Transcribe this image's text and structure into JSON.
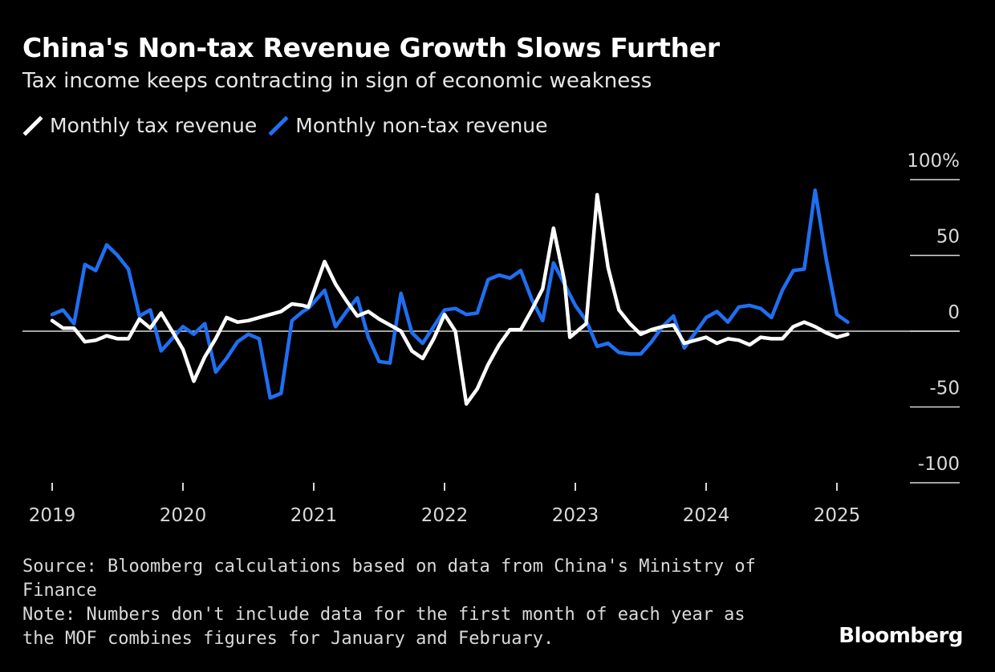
{
  "header": {
    "title": "China's Non-tax Revenue Growth Slows Further",
    "subtitle": "Tax income keeps contracting in sign of economic weakness"
  },
  "legend": [
    {
      "label": "Monthly tax revenue",
      "color": "#ffffff"
    },
    {
      "label": "Monthly non-tax revenue",
      "color": "#1f6ff2"
    }
  ],
  "footer": {
    "source": "Source: Bloomberg calculations based on data from China's Ministry of Finance",
    "note": "Note: Numbers don't include data for the first month of each year as the MOF combines figures for January and February.",
    "brand": "Bloomberg"
  },
  "chart_data": {
    "type": "line",
    "title": "China's Non-tax Revenue Growth Slows Further",
    "subtitle": "Tax income keeps contracting in sign of economic weakness",
    "xlabel": "",
    "ylabel": "",
    "ylim": [
      -100,
      100
    ],
    "xlim": [
      2019.0,
      2025.5
    ],
    "y_ticks": [
      100,
      50,
      0,
      -50,
      -100
    ],
    "y_tick_labels": [
      "100%",
      "50",
      "0",
      "-50",
      "-100"
    ],
    "x_ticks": [
      2019,
      2020,
      2021,
      2022,
      2023,
      2024,
      2025
    ],
    "x_tick_labels": [
      "2019",
      "2020",
      "2021",
      "2022",
      "2023",
      "2024",
      "2025"
    ],
    "zero_line": true,
    "grid": false,
    "legend_position": "top-left",
    "series": [
      {
        "name": "Monthly tax revenue",
        "color": "#ffffff",
        "points": [
          [
            2019.0,
            7
          ],
          [
            2019.083,
            2
          ],
          [
            2019.167,
            2
          ],
          [
            2019.25,
            -7
          ],
          [
            2019.333,
            -6
          ],
          [
            2019.417,
            -3
          ],
          [
            2019.5,
            -5
          ],
          [
            2019.583,
            -5
          ],
          [
            2019.667,
            8
          ],
          [
            2019.75,
            2
          ],
          [
            2019.833,
            12
          ],
          [
            2019.917,
            0
          ],
          [
            2020.0,
            -12
          ],
          [
            2020.083,
            -33
          ],
          [
            2020.167,
            -17
          ],
          [
            2020.25,
            -5
          ],
          [
            2020.333,
            9
          ],
          [
            2020.417,
            6
          ],
          [
            2020.5,
            7
          ],
          [
            2020.583,
            9
          ],
          [
            2020.667,
            11
          ],
          [
            2020.75,
            13
          ],
          [
            2020.833,
            18
          ],
          [
            2020.917,
            17
          ],
          [
            2020.958,
            16
          ],
          [
            2021.083,
            46
          ],
          [
            2021.167,
            31
          ],
          [
            2021.25,
            20
          ],
          [
            2021.333,
            10
          ],
          [
            2021.417,
            13
          ],
          [
            2021.5,
            8
          ],
          [
            2021.583,
            4
          ],
          [
            2021.667,
            0
          ],
          [
            2021.75,
            -13
          ],
          [
            2021.833,
            -18
          ],
          [
            2021.917,
            -5
          ],
          [
            2022.0,
            11
          ],
          [
            2022.083,
            0
          ],
          [
            2022.167,
            -48
          ],
          [
            2022.25,
            -38
          ],
          [
            2022.333,
            -22
          ],
          [
            2022.417,
            -9
          ],
          [
            2022.5,
            1
          ],
          [
            2022.583,
            1
          ],
          [
            2022.667,
            14
          ],
          [
            2022.75,
            28
          ],
          [
            2022.833,
            68
          ],
          [
            2022.917,
            33
          ],
          [
            2022.958,
            -4
          ],
          [
            2023.083,
            5
          ],
          [
            2023.167,
            90
          ],
          [
            2023.25,
            42
          ],
          [
            2023.333,
            14
          ],
          [
            2023.417,
            5
          ],
          [
            2023.5,
            -2
          ],
          [
            2023.583,
            1
          ],
          [
            2023.667,
            3
          ],
          [
            2023.75,
            4
          ],
          [
            2023.833,
            -8
          ],
          [
            2023.917,
            -6
          ],
          [
            2024.0,
            -4
          ],
          [
            2024.083,
            -8
          ],
          [
            2024.167,
            -5
          ],
          [
            2024.25,
            -6
          ],
          [
            2024.333,
            -9
          ],
          [
            2024.417,
            -4
          ],
          [
            2024.5,
            -5
          ],
          [
            2024.583,
            -5
          ],
          [
            2024.667,
            3
          ],
          [
            2024.75,
            6
          ],
          [
            2024.833,
            3
          ],
          [
            2024.917,
            -1
          ],
          [
            2025.0,
            -4
          ],
          [
            2025.083,
            -2
          ]
        ]
      },
      {
        "name": "Monthly non-tax revenue",
        "color": "#1f6ff2",
        "points": [
          [
            2019.0,
            11
          ],
          [
            2019.083,
            14
          ],
          [
            2019.167,
            5
          ],
          [
            2019.25,
            44
          ],
          [
            2019.333,
            40
          ],
          [
            2019.417,
            57
          ],
          [
            2019.5,
            50
          ],
          [
            2019.583,
            41
          ],
          [
            2019.667,
            10
          ],
          [
            2019.75,
            14
          ],
          [
            2019.833,
            -13
          ],
          [
            2019.917,
            -5
          ],
          [
            2020.0,
            3
          ],
          [
            2020.083,
            -2
          ],
          [
            2020.167,
            5
          ],
          [
            2020.25,
            -27
          ],
          [
            2020.333,
            -18
          ],
          [
            2020.417,
            -7
          ],
          [
            2020.5,
            -2
          ],
          [
            2020.583,
            -5
          ],
          [
            2020.667,
            -44
          ],
          [
            2020.75,
            -41
          ],
          [
            2020.833,
            7
          ],
          [
            2020.917,
            13
          ],
          [
            2020.958,
            15
          ],
          [
            2021.083,
            27
          ],
          [
            2021.167,
            3
          ],
          [
            2021.25,
            13
          ],
          [
            2021.333,
            22
          ],
          [
            2021.417,
            -4
          ],
          [
            2021.5,
            -20
          ],
          [
            2021.583,
            -21
          ],
          [
            2021.667,
            25
          ],
          [
            2021.75,
            -1
          ],
          [
            2021.833,
            -8
          ],
          [
            2021.917,
            3
          ],
          [
            2022.0,
            14
          ],
          [
            2022.083,
            15
          ],
          [
            2022.167,
            11
          ],
          [
            2022.25,
            12
          ],
          [
            2022.333,
            34
          ],
          [
            2022.417,
            37
          ],
          [
            2022.5,
            35
          ],
          [
            2022.583,
            40
          ],
          [
            2022.667,
            21
          ],
          [
            2022.75,
            7
          ],
          [
            2022.833,
            45
          ],
          [
            2022.917,
            31
          ],
          [
            2023.0,
            17
          ],
          [
            2023.083,
            7
          ],
          [
            2023.167,
            -10
          ],
          [
            2023.25,
            -8
          ],
          [
            2023.333,
            -14
          ],
          [
            2023.417,
            -15
          ],
          [
            2023.5,
            -15
          ],
          [
            2023.583,
            -7
          ],
          [
            2023.667,
            3
          ],
          [
            2023.75,
            10
          ],
          [
            2023.833,
            -11
          ],
          [
            2023.917,
            -1
          ],
          [
            2024.0,
            9
          ],
          [
            2024.083,
            13
          ],
          [
            2024.167,
            6
          ],
          [
            2024.25,
            16
          ],
          [
            2024.333,
            17
          ],
          [
            2024.417,
            15
          ],
          [
            2024.5,
            9
          ],
          [
            2024.583,
            27
          ],
          [
            2024.667,
            40
          ],
          [
            2024.75,
            41
          ],
          [
            2024.833,
            93
          ],
          [
            2024.917,
            48
          ],
          [
            2025.0,
            11
          ],
          [
            2025.083,
            6
          ]
        ]
      }
    ]
  }
}
